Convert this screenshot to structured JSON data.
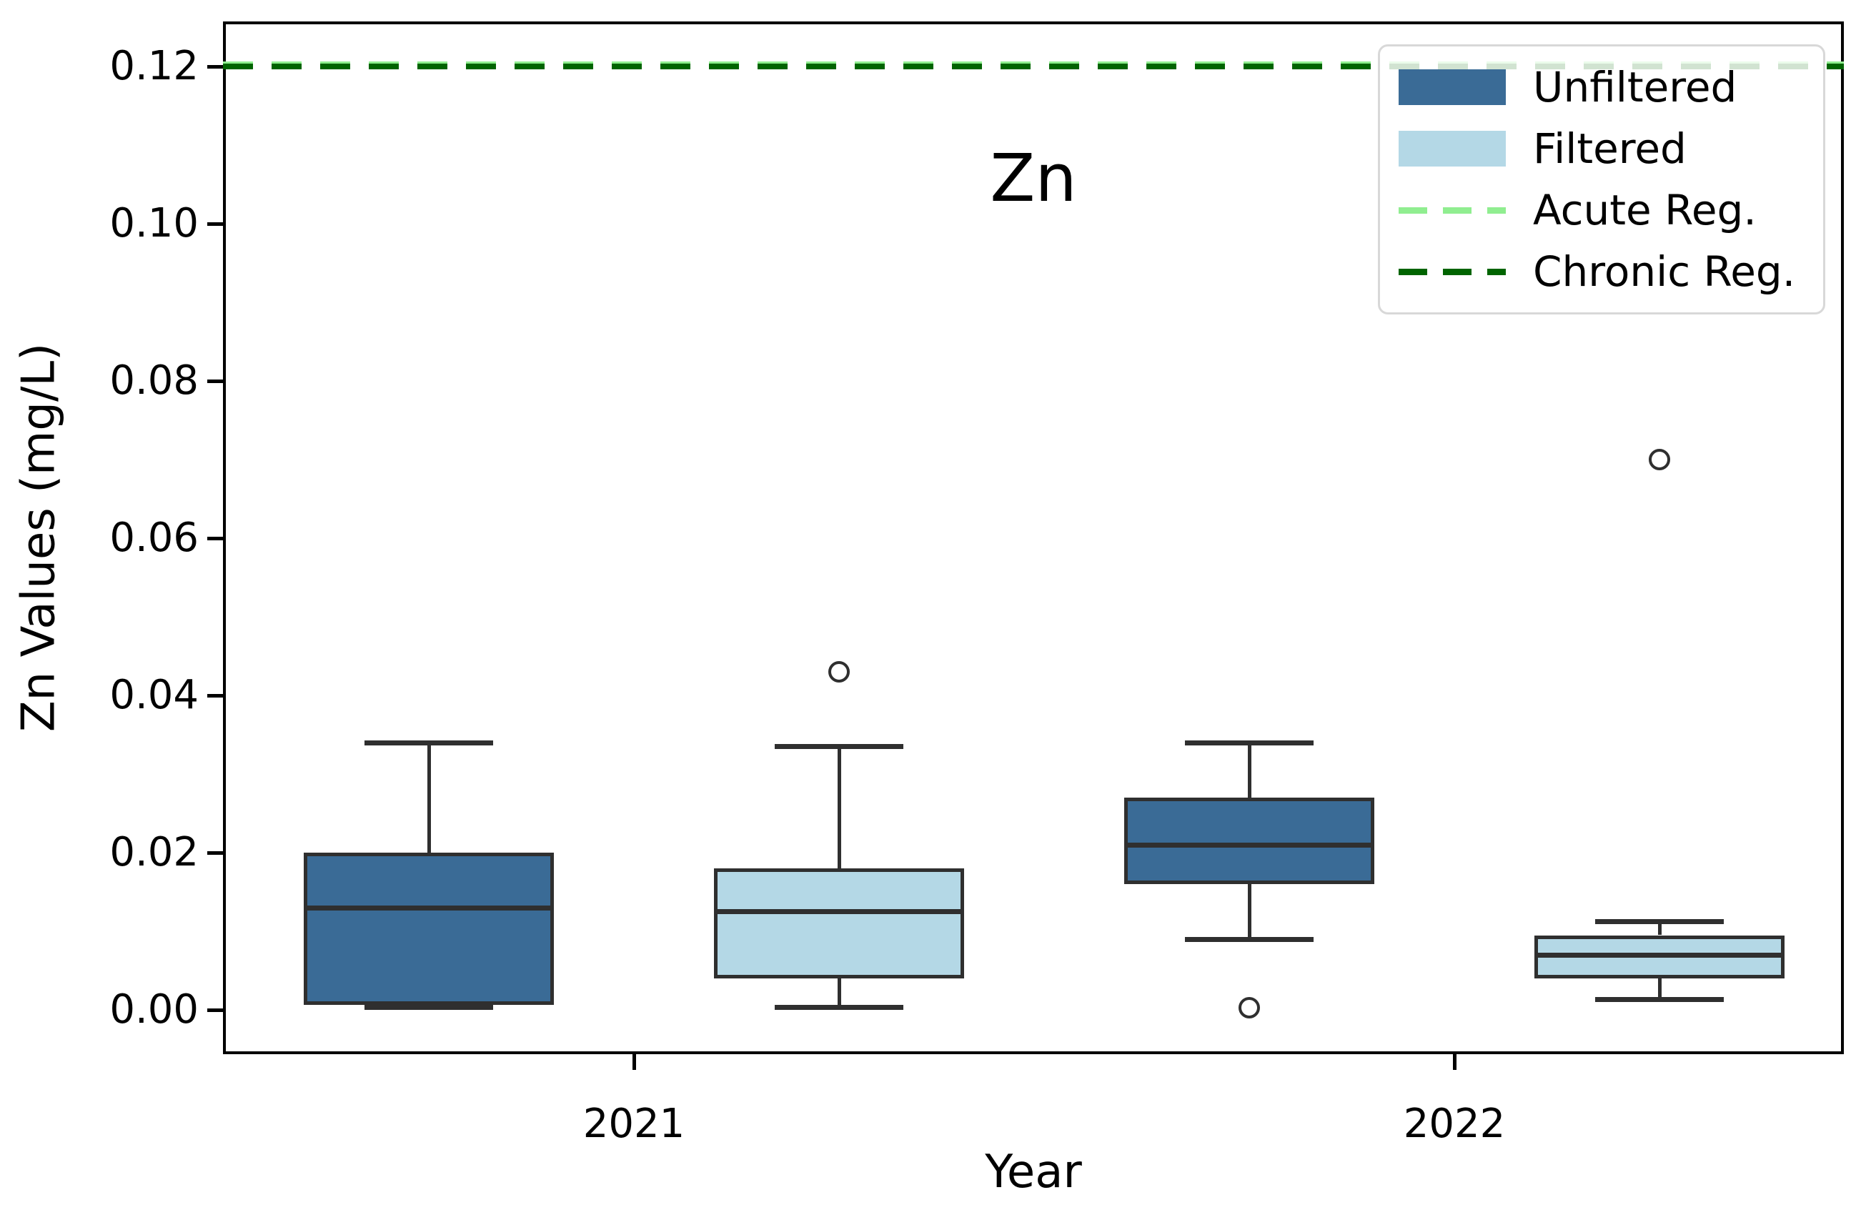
{
  "title": "Zn",
  "chart_data": {
    "type": "box",
    "title": "Zn",
    "xlabel": "Year",
    "ylabel": "Zn Values (mg/L)",
    "categories": [
      "2021",
      "2022"
    ],
    "yticks": [
      "0.00",
      "0.02",
      "0.04",
      "0.06",
      "0.08",
      "0.10",
      "0.12"
    ],
    "ylim": [
      -0.0056,
      0.1257
    ],
    "grid": false,
    "legend_position": "upper right",
    "edge_color": "#2f2f2f",
    "series": [
      {
        "name": "Unfiltered",
        "fill_color": "#3a6b96",
        "boxes": [
          {
            "category": "2021",
            "whislo": 0.0003,
            "q1": 0.0006,
            "med": 0.013,
            "q3": 0.02,
            "whishi": 0.034,
            "outliers": []
          },
          {
            "category": "2022",
            "whislo": 0.009,
            "q1": 0.016,
            "med": 0.021,
            "q3": 0.027,
            "whishi": 0.034,
            "outliers": [
              0.0003
            ]
          }
        ]
      },
      {
        "name": "Filtered",
        "fill_color": "#b4d8e6",
        "boxes": [
          {
            "category": "2021",
            "whislo": 0.0003,
            "q1": 0.004,
            "med": 0.0125,
            "q3": 0.018,
            "whishi": 0.0335,
            "outliers": [
              0.043
            ]
          },
          {
            "category": "2022",
            "whislo": 0.0013,
            "q1": 0.004,
            "med": 0.007,
            "q3": 0.0095,
            "whishi": 0.0112,
            "outliers": [
              0.07
            ]
          }
        ]
      }
    ],
    "reference_lines": [
      {
        "label": "Acute Reg.",
        "value": 0.12,
        "color": "#90ee90",
        "style": "dashed"
      },
      {
        "label": "Chronic Reg.",
        "value": 0.12,
        "color": "#006400",
        "style": "dashed"
      }
    ],
    "legend": [
      {
        "label": "Unfiltered",
        "swatch": "patch",
        "color": "#3a6b96"
      },
      {
        "label": "Filtered",
        "swatch": "patch",
        "color": "#b4d8e6"
      },
      {
        "label": "Acute Reg.",
        "swatch": "dashed-line",
        "color": "#90ee90"
      },
      {
        "label": "Chronic Reg.",
        "swatch": "dashed-line",
        "color": "#006400"
      }
    ]
  }
}
